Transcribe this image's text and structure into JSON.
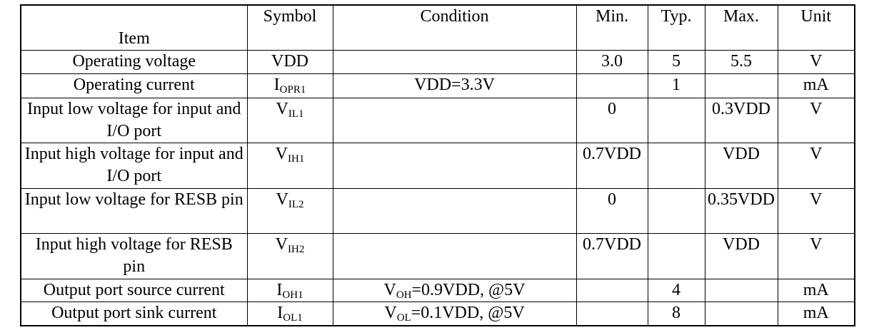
{
  "table": {
    "columns": [
      "Item",
      "Symbol",
      "Condition",
      "Min.",
      "Typ.",
      "Max.",
      "Unit"
    ],
    "rows": [
      [
        "Operating voltage",
        {
          "main": "VDD"
        },
        null,
        "3.0",
        "5",
        "5.5",
        "V"
      ],
      [
        "Operating current",
        {
          "main": "I",
          "sub": "OPR1"
        },
        {
          "main": "VDD=3.3V"
        },
        null,
        "1",
        null,
        "mA"
      ],
      [
        "Input low voltage for input and I/O port",
        {
          "main": "V",
          "sub": "IL1"
        },
        null,
        "0",
        null,
        "0.3VDD",
        "V"
      ],
      [
        "Input high voltage for input and I/O port",
        {
          "main": "V",
          "sub": "IH1"
        },
        null,
        "0.7VDD",
        null,
        "VDD",
        "V"
      ],
      [
        "Input low voltage for RESB pin",
        {
          "main": "V",
          "sub": "IL2"
        },
        null,
        "0",
        null,
        "0.35VDD",
        "V"
      ],
      [
        "Input high voltage for RESB pin",
        {
          "main": "V",
          "sub": "IH2"
        },
        null,
        "0.7VDD",
        null,
        "VDD",
        "V"
      ],
      [
        "Output port source current",
        {
          "main": "I",
          "sub": "OH1"
        },
        {
          "main": "V",
          "sub": "OH",
          "rest": "=0.9VDD, @5V"
        },
        null,
        "4",
        null,
        "mA"
      ],
      [
        "Output port sink current",
        {
          "main": "I",
          "sub": "OL1"
        },
        {
          "main": "V",
          "sub": "OL",
          "rest": "=0.1VDD, @5V"
        },
        null,
        "8",
        null,
        "mA"
      ]
    ]
  }
}
